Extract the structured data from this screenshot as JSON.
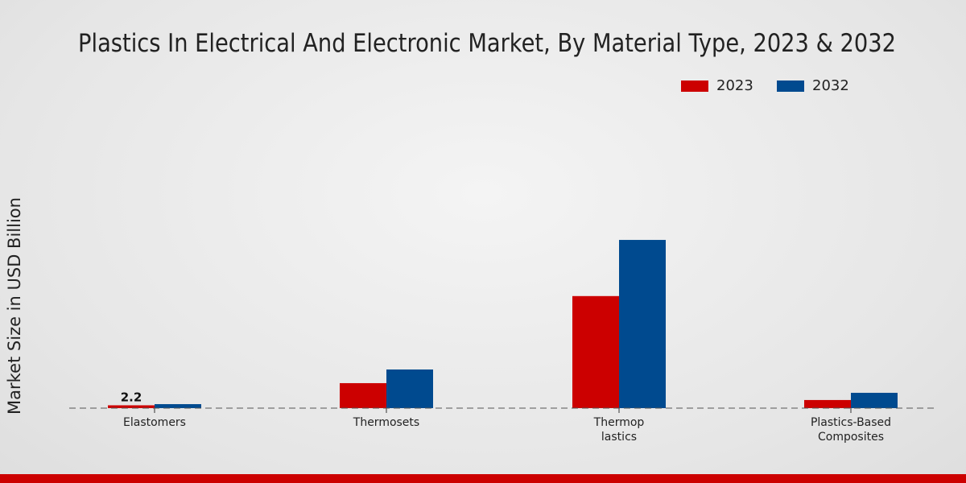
{
  "chart_data": {
    "type": "bar",
    "title": "Plastics In Electrical And Electronic Market, By Material Type, 2023 & 2032",
    "xlabel": "",
    "ylabel": "Market Size in USD Billion",
    "categories": [
      "Elastomers",
      "Thermosets",
      "Thermop\nlastics",
      "Plastics-Based\nComposites"
    ],
    "series": [
      {
        "name": "2023",
        "color": "#cc0000",
        "values": [
          2.2,
          19.4,
          87.0,
          6.3
        ]
      },
      {
        "name": "2032",
        "color": "#004a8f",
        "values": [
          3.1,
          30.0,
          130.6,
          11.9
        ]
      }
    ],
    "data_labels": [
      {
        "series": "2023",
        "category": "Elastomers",
        "text": "2.2"
      }
    ],
    "legend": "top-right",
    "grid": false
  }
}
